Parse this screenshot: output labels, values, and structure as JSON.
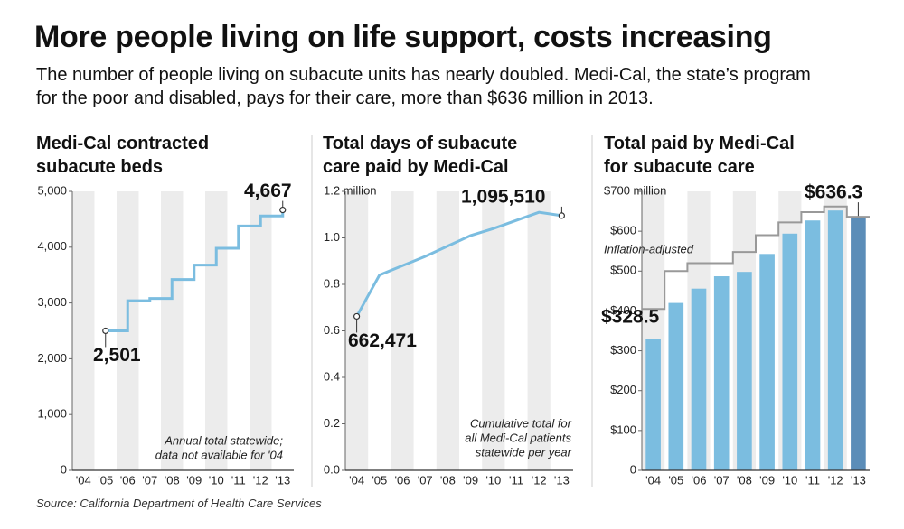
{
  "title": "More people living on life support, costs increasing",
  "subtitle": "The number of people living on subacute units has nearly doubled. Medi-Cal, the state’s program for the poor and disabled, pays for their care, more than $636 million in 2013.",
  "source": "Source: California Department of Health Care Services",
  "chart_data": [
    {
      "type": "step",
      "title": "Medi-Cal contracted subacute beds",
      "categories": [
        "'04",
        "'05",
        "'06",
        "'07",
        "'08",
        "'09",
        "'10",
        "'11",
        "'12",
        "'13"
      ],
      "series": [
        {
          "color": "#7bbde0",
          "values": [
            null,
            2501,
            3040,
            3080,
            3420,
            3680,
            3980,
            4380,
            4560,
            4667
          ],
          "value_labels": [
            null,
            "2,501",
            null,
            null,
            null,
            null,
            null,
            null,
            null,
            "4,667"
          ]
        }
      ],
      "ylim": [
        0,
        5000
      ],
      "yticks": [
        0,
        {
          "value": 1000,
          "label": "1,000"
        },
        {
          "value": 2000,
          "label": "2,000"
        },
        {
          "value": 3000,
          "label": "3,000"
        },
        {
          "value": 4000,
          "label": "4,000"
        },
        {
          "value": 5000,
          "label": "5,000"
        }
      ],
      "note": [
        "Annual total statewide;",
        "data not available for '04"
      ]
    },
    {
      "type": "line",
      "title": "Total days of subacute care paid by Medi-Cal",
      "categories": [
        "'04",
        "'05",
        "'06",
        "'07",
        "'08",
        "'09",
        "'10",
        "'11",
        "'12",
        "'13"
      ],
      "series": [
        {
          "color": "#7bbde0",
          "values": [
            0.662471,
            0.84,
            0.88,
            0.92,
            0.965,
            1.01,
            1.04,
            1.075,
            1.11,
            1.09551
          ],
          "value_labels": [
            "662,471",
            null,
            null,
            null,
            null,
            null,
            null,
            null,
            null,
            "1,095,510"
          ]
        }
      ],
      "ylim": [
        0,
        1.2
      ],
      "yticks": [
        {
          "value": 0,
          "label": "0.0"
        },
        0.2,
        0.4,
        0.6,
        0.8,
        {
          "value": 1,
          "label": "1.0"
        },
        {
          "value": 1.2,
          "label": "1.2 million"
        }
      ],
      "note": [
        "Cumulative total for",
        "all Medi-Cal patients",
        "statewide per year"
      ]
    },
    {
      "type": "bar",
      "title": "Total paid by Medi-Cal for subacute care",
      "categories": [
        "'04",
        "'05",
        "'06",
        "'07",
        "'08",
        "'09",
        "'10",
        "'11",
        "'12",
        "'13"
      ],
      "series": [
        {
          "type": "bar",
          "color": "#7bbde0",
          "highlight_color": "#5b8db8",
          "highlight_index": 9,
          "values": [
            328.5,
            420,
            456,
            487,
            498,
            543,
            594,
            627,
            652,
            636.3
          ],
          "value_labels": [
            "$328.5",
            null,
            null,
            null,
            null,
            null,
            null,
            null,
            null,
            "$636.3"
          ]
        },
        {
          "type": "step",
          "name": "Inflation-adjusted",
          "color": "#999999",
          "values": [
            405,
            500,
            520,
            520,
            548,
            590,
            622,
            648,
            662,
            636.3
          ]
        }
      ],
      "ylim": [
        0,
        700
      ],
      "yticks": [
        0,
        {
          "value": 100,
          "label": "$100"
        },
        {
          "value": 200,
          "label": "$200"
        },
        {
          "value": 300,
          "label": "$300"
        },
        {
          "value": 400,
          "label": "$400"
        },
        {
          "value": 500,
          "label": "$500"
        },
        {
          "value": 600,
          "label": "$600"
        },
        {
          "value": 700,
          "label": "$700 million"
        }
      ]
    }
  ]
}
